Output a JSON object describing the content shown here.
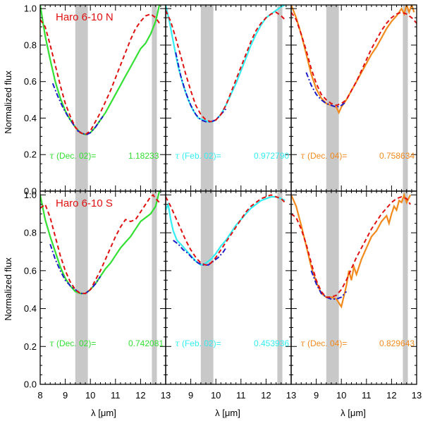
{
  "figure": {
    "ylabel": "Normalized flux",
    "xlabel": "λ [μm]",
    "tau_symbol": "τ"
  },
  "chart_data": {
    "type": "line",
    "xlim": [
      8,
      13
    ],
    "ylim": [
      0.0,
      1.02
    ],
    "x_ticks": [
      8,
      9,
      10,
      11,
      12,
      13
    ],
    "y_ticks": [
      0.0,
      0.2,
      0.4,
      0.6,
      0.8,
      1.0
    ],
    "y_tick_labels": [
      "0.0",
      "0.2",
      "0.4",
      "0.6",
      "0.8",
      "1.0"
    ],
    "excluded_bands_um": [
      [
        9.4,
        9.9
      ],
      [
        12.45,
        12.65
      ]
    ],
    "colors": {
      "model": "#e01010",
      "fit": "#1c1cc8",
      "shade": "#c8c8c8",
      "frame": "#000000"
    },
    "rows": [
      {
        "title": "Haro 6-10 N",
        "title_color": "#e01010"
      },
      {
        "title": "Haro 6-10 S",
        "title_color": "#e01010"
      }
    ],
    "panels": [
      {
        "row": 0,
        "col": 0,
        "epoch": "(Dec. 02)=",
        "tau": "1.18233",
        "color": "#33e033",
        "observed": {
          "x": [
            8.0,
            8.2,
            8.4,
            8.6,
            8.8,
            9.0,
            9.2,
            9.4,
            9.6,
            9.8,
            10.0,
            10.2,
            10.4,
            10.6,
            10.8,
            11.0,
            11.2,
            11.4,
            11.6,
            11.8,
            12.0,
            12.2,
            12.4,
            12.6,
            12.75
          ],
          "y": [
            1.02,
            0.85,
            0.72,
            0.6,
            0.51,
            0.44,
            0.39,
            0.35,
            0.32,
            0.31,
            0.32,
            0.35,
            0.39,
            0.43,
            0.48,
            0.53,
            0.58,
            0.63,
            0.68,
            0.73,
            0.78,
            0.81,
            0.86,
            0.93,
            1.02
          ]
        },
        "fit": {
          "x": [
            8.5,
            8.7,
            8.9,
            9.1,
            9.3,
            9.5,
            9.7,
            9.85,
            10.0,
            10.2,
            10.4,
            10.5
          ],
          "y": [
            0.59,
            0.52,
            0.46,
            0.41,
            0.37,
            0.33,
            0.315,
            0.31,
            0.32,
            0.35,
            0.39,
            0.41
          ]
        },
        "model": {
          "x": [
            8.0,
            8.2,
            8.4,
            8.6,
            8.8,
            9.0,
            9.2,
            9.4,
            9.6,
            9.8,
            10.0,
            10.2,
            10.4,
            10.6,
            10.8,
            11.0,
            11.2,
            11.4,
            11.6,
            11.8,
            12.0,
            12.2,
            12.4,
            12.6,
            12.75
          ],
          "y": [
            0.94,
            0.9,
            0.8,
            0.69,
            0.58,
            0.48,
            0.41,
            0.35,
            0.32,
            0.31,
            0.33,
            0.38,
            0.43,
            0.49,
            0.55,
            0.62,
            0.69,
            0.76,
            0.83,
            0.89,
            0.93,
            0.96,
            0.97,
            0.95,
            0.92
          ]
        }
      },
      {
        "row": 0,
        "col": 1,
        "epoch": "(Feb. 02)=",
        "tau": "0.972790",
        "color": "#33eef2",
        "observed": {
          "x": [
            8.0,
            8.15,
            8.3,
            8.5,
            8.7,
            8.9,
            9.1,
            9.3,
            9.5,
            9.7,
            9.85,
            10.0,
            10.2,
            10.4,
            10.6,
            10.8,
            11.0,
            11.2,
            11.4,
            11.6,
            11.8,
            12.0,
            12.2,
            12.4,
            12.6,
            12.75
          ],
          "y": [
            1.02,
            0.93,
            0.82,
            0.68,
            0.58,
            0.5,
            0.44,
            0.4,
            0.39,
            0.38,
            0.38,
            0.39,
            0.42,
            0.47,
            0.53,
            0.59,
            0.66,
            0.73,
            0.8,
            0.86,
            0.91,
            0.95,
            0.97,
            0.99,
            1.01,
            1.02
          ]
        },
        "fit": {
          "x": [
            8.4,
            8.6,
            8.8,
            9.0,
            9.2,
            9.4,
            9.6,
            9.8,
            10.0,
            10.2,
            10.4
          ],
          "y": [
            0.76,
            0.63,
            0.54,
            0.47,
            0.42,
            0.39,
            0.38,
            0.38,
            0.39,
            0.42,
            0.45
          ]
        },
        "model": {
          "x": [
            8.0,
            8.2,
            8.4,
            8.6,
            8.8,
            9.0,
            9.2,
            9.4,
            9.6,
            9.8,
            10.0,
            10.2,
            10.4,
            10.6,
            10.8,
            11.0,
            11.2,
            11.4,
            11.6,
            11.8,
            12.0,
            12.2,
            12.4,
            12.6,
            12.75
          ],
          "y": [
            0.99,
            0.93,
            0.84,
            0.74,
            0.64,
            0.55,
            0.47,
            0.42,
            0.39,
            0.38,
            0.39,
            0.42,
            0.47,
            0.54,
            0.61,
            0.68,
            0.75,
            0.82,
            0.88,
            0.92,
            0.95,
            0.97,
            0.98,
            0.96,
            0.94
          ]
        }
      },
      {
        "row": 0,
        "col": 2,
        "epoch": "(Dec. 04)=",
        "tau": "0.758634",
        "color": "#f28a1e",
        "observed": {
          "x": [
            8.0,
            8.2,
            8.4,
            8.6,
            8.8,
            9.0,
            9.2,
            9.4,
            9.6,
            9.8,
            9.9,
            10.0,
            10.2,
            10.4,
            10.6,
            10.8,
            11.0,
            11.2,
            11.4,
            11.6,
            11.8,
            12.0,
            12.2,
            12.4,
            12.5,
            12.6,
            12.7,
            12.8,
            12.9
          ],
          "y": [
            1.02,
            0.95,
            0.86,
            0.75,
            0.64,
            0.56,
            0.51,
            0.48,
            0.47,
            0.46,
            0.43,
            0.46,
            0.5,
            0.55,
            0.6,
            0.65,
            0.7,
            0.75,
            0.79,
            0.84,
            0.89,
            0.93,
            0.96,
            1.0,
            0.97,
            1.02,
            0.98,
            1.02,
            0.98
          ]
        },
        "fit": {
          "x": [
            8.6,
            8.8,
            9.0,
            9.2,
            9.4,
            9.6,
            9.8,
            10.0,
            10.2
          ],
          "y": [
            0.65,
            0.58,
            0.53,
            0.5,
            0.48,
            0.47,
            0.46,
            0.47,
            0.49
          ]
        },
        "model": {
          "x": [
            8.0,
            8.2,
            8.4,
            8.6,
            8.8,
            9.0,
            9.2,
            9.4,
            9.6,
            9.8,
            10.0,
            10.2,
            10.4,
            10.6,
            10.8,
            11.0,
            11.2,
            11.4,
            11.6,
            11.8,
            12.0,
            12.2,
            12.4,
            12.6,
            12.8,
            13.0
          ],
          "y": [
            0.98,
            0.94,
            0.86,
            0.77,
            0.67,
            0.59,
            0.53,
            0.5,
            0.48,
            0.47,
            0.48,
            0.5,
            0.55,
            0.6,
            0.66,
            0.72,
            0.78,
            0.83,
            0.88,
            0.92,
            0.95,
            0.97,
            0.98,
            0.97,
            0.95,
            0.92
          ]
        }
      },
      {
        "row": 1,
        "col": 0,
        "epoch": "(Dec. 02)=",
        "tau": "0.742081",
        "color": "#33e033",
        "observed": {
          "x": [
            8.0,
            8.2,
            8.4,
            8.6,
            8.8,
            9.0,
            9.2,
            9.4,
            9.6,
            9.8,
            10.0,
            10.2,
            10.4,
            10.6,
            10.8,
            11.0,
            11.2,
            11.4,
            11.6,
            11.8,
            12.0,
            12.2,
            12.4,
            12.6,
            12.75
          ],
          "y": [
            1.0,
            0.87,
            0.78,
            0.7,
            0.62,
            0.56,
            0.52,
            0.49,
            0.48,
            0.48,
            0.5,
            0.53,
            0.57,
            0.61,
            0.64,
            0.68,
            0.72,
            0.75,
            0.78,
            0.82,
            0.86,
            0.88,
            0.9,
            0.94,
            1.02
          ]
        },
        "fit": {
          "x": [
            8.4,
            8.6,
            8.8,
            9.0,
            9.2,
            9.4,
            9.6,
            9.8,
            10.0,
            10.2,
            10.4
          ],
          "y": [
            0.74,
            0.66,
            0.6,
            0.55,
            0.52,
            0.5,
            0.48,
            0.48,
            0.5,
            0.53,
            0.57
          ]
        },
        "model": {
          "x": [
            8.0,
            8.2,
            8.4,
            8.6,
            8.8,
            9.0,
            9.2,
            9.4,
            9.6,
            9.8,
            10.0,
            10.2,
            10.4,
            10.6,
            10.8,
            11.0,
            11.2,
            11.4,
            11.6,
            11.8,
            12.0,
            12.2,
            12.4,
            12.5,
            12.6,
            12.75
          ],
          "y": [
            0.93,
            0.95,
            0.88,
            0.78,
            0.68,
            0.6,
            0.54,
            0.5,
            0.48,
            0.48,
            0.5,
            0.55,
            0.6,
            0.66,
            0.72,
            0.78,
            0.83,
            0.87,
            0.86,
            0.87,
            0.91,
            0.95,
            0.99,
            1.0,
            0.98,
            0.96
          ]
        }
      },
      {
        "row": 1,
        "col": 1,
        "epoch": "(Feb. 02)=",
        "tau": "0.453936",
        "color": "#33eef2",
        "observed": {
          "x": [
            8.0,
            8.1,
            8.2,
            8.3,
            8.45,
            8.6,
            8.8,
            9.0,
            9.2,
            9.4,
            9.6,
            9.8,
            10.0,
            10.2,
            10.4,
            10.6,
            10.8,
            11.0,
            11.2,
            11.4,
            11.6,
            11.8,
            12.0,
            12.2,
            12.4,
            12.6,
            12.75
          ],
          "y": [
            0.92,
            0.95,
            0.87,
            0.81,
            0.76,
            0.74,
            0.71,
            0.68,
            0.65,
            0.63,
            0.64,
            0.66,
            0.69,
            0.73,
            0.76,
            0.8,
            0.84,
            0.87,
            0.9,
            0.93,
            0.95,
            0.97,
            0.98,
            0.99,
            0.99,
            0.98,
            0.97
          ]
        },
        "fit": {
          "x": [
            8.3,
            8.5,
            8.7,
            8.9,
            9.1,
            9.3,
            9.5,
            9.7,
            9.9,
            10.1,
            10.3,
            10.4
          ],
          "y": [
            0.76,
            0.74,
            0.71,
            0.69,
            0.66,
            0.64,
            0.63,
            0.63,
            0.65,
            0.67,
            0.7,
            0.72
          ]
        },
        "model": {
          "x": [
            8.0,
            8.2,
            8.4,
            8.6,
            8.8,
            9.0,
            9.2,
            9.4,
            9.6,
            9.8,
            10.0,
            10.2,
            10.4,
            10.6,
            10.8,
            11.0,
            11.2,
            11.4,
            11.6,
            11.8,
            12.0,
            12.2,
            12.4,
            12.6,
            12.75
          ],
          "y": [
            0.99,
            0.94,
            0.88,
            0.82,
            0.76,
            0.71,
            0.67,
            0.64,
            0.63,
            0.64,
            0.67,
            0.71,
            0.75,
            0.79,
            0.83,
            0.87,
            0.91,
            0.94,
            0.96,
            0.98,
            0.99,
            1.0,
            0.99,
            0.98,
            0.96
          ]
        }
      },
      {
        "row": 1,
        "col": 2,
        "epoch": "(Dec. 04)=",
        "tau": "0.829643",
        "color": "#f28a1e",
        "observed": {
          "x": [
            8.0,
            8.2,
            8.4,
            8.6,
            8.8,
            9.0,
            9.2,
            9.4,
            9.6,
            9.8,
            10.0,
            10.2,
            10.3,
            10.4,
            10.5,
            10.6,
            10.8,
            11.0,
            11.2,
            11.4,
            11.6,
            11.8,
            11.9,
            12.0,
            12.1,
            12.2,
            12.3,
            12.4,
            12.5,
            12.6,
            12.75
          ],
          "y": [
            1.0,
            0.94,
            0.84,
            0.73,
            0.62,
            0.54,
            0.48,
            0.46,
            0.46,
            0.45,
            0.41,
            0.52,
            0.6,
            0.55,
            0.62,
            0.58,
            0.66,
            0.72,
            0.78,
            0.81,
            0.86,
            0.89,
            0.85,
            0.9,
            0.94,
            0.92,
            0.97,
            0.96,
            1.0,
            0.96,
            1.0
          ]
        },
        "fit": {
          "x": [
            8.8,
            9.0,
            9.2,
            9.4,
            9.6,
            9.8,
            10.0,
            10.2
          ],
          "y": [
            0.6,
            0.53,
            0.48,
            0.46,
            0.45,
            0.45,
            0.46,
            0.49
          ]
        },
        "model": {
          "x": [
            8.0,
            8.2,
            8.4,
            8.6,
            8.8,
            9.0,
            9.2,
            9.4,
            9.6,
            9.8,
            10.0,
            10.2,
            10.4,
            10.6,
            10.8,
            11.0,
            11.2,
            11.4,
            11.6,
            11.8,
            12.0,
            12.2,
            12.4,
            12.6,
            12.75
          ],
          "y": [
            0.9,
            0.88,
            0.82,
            0.74,
            0.64,
            0.55,
            0.49,
            0.46,
            0.46,
            0.47,
            0.5,
            0.55,
            0.61,
            0.67,
            0.72,
            0.77,
            0.82,
            0.86,
            0.9,
            0.93,
            0.96,
            0.98,
            0.99,
            0.98,
            0.95
          ]
        }
      }
    ]
  }
}
